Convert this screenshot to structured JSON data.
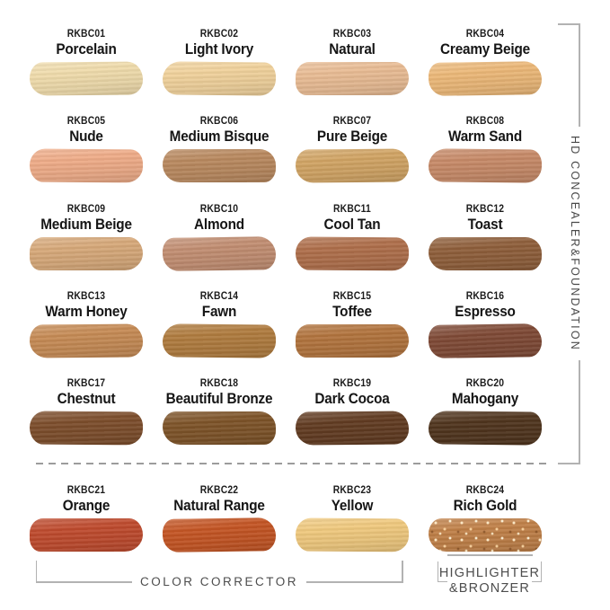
{
  "sections": {
    "right_label": "HD CONCEALER&FOUNDATION",
    "color_corrector_label": "COLOR CORRECTOR",
    "highlighter_bronzer_line1": "HIGHLIGHTER",
    "highlighter_bronzer_line2": "&BRONZER"
  },
  "groups": [
    {
      "label": "HD CONCEALER&FOUNDATION",
      "shade_codes": "RKBC01-RKBC20"
    },
    {
      "label": "COLOR CORRECTOR",
      "shade_codes": "RKBC21-RKBC23"
    },
    {
      "label": "HIGHLIGHTER &BRONZER",
      "shade_codes": "RKBC24"
    }
  ],
  "colors": {
    "text": "#1c1c1c",
    "section_text": "#4d4d4d",
    "bracket_line": "#b2b2b2",
    "divider": "#9c9c9c",
    "background": "#ffffff"
  },
  "shades": [
    {
      "code": "RKBC01",
      "name": "Porcelain",
      "color": "#f0dcac"
    },
    {
      "code": "RKBC02",
      "name": "Light Ivory",
      "color": "#f1d29c"
    },
    {
      "code": "RKBC03",
      "name": "Natural",
      "color": "#e9bc94"
    },
    {
      "code": "RKBC04",
      "name": "Creamy Beige",
      "color": "#ecb878"
    },
    {
      "code": "RKBC05",
      "name": "Nude",
      "color": "#efac88"
    },
    {
      "code": "RKBC06",
      "name": "Medium Bisque",
      "color": "#b9895f"
    },
    {
      "code": "RKBC07",
      "name": "Pure Beige",
      "color": "#d1a464"
    },
    {
      "code": "RKBC08",
      "name": "Warm Sand",
      "color": "#c78a68"
    },
    {
      "code": "RKBC09",
      "name": "Medium Beige",
      "color": "#d7a97a"
    },
    {
      "code": "RKBC10",
      "name": "Almond",
      "color": "#c28e72"
    },
    {
      "code": "RKBC11",
      "name": "Cool Tan",
      "color": "#af6f4b"
    },
    {
      "code": "RKBC12",
      "name": "Toast",
      "color": "#8f5f3b"
    },
    {
      "code": "RKBC13",
      "name": "Warm Honey",
      "color": "#c68b55"
    },
    {
      "code": "RKBC14",
      "name": "Fawn",
      "color": "#b07c3f"
    },
    {
      "code": "RKBC15",
      "name": "Toffee",
      "color": "#b2743e"
    },
    {
      "code": "RKBC16",
      "name": "Espresso",
      "color": "#7f4a36"
    },
    {
      "code": "RKBC17",
      "name": "Chestnut",
      "color": "#7d4e2c"
    },
    {
      "code": "RKBC18",
      "name": "Beautiful Bronze",
      "color": "#7e5429"
    },
    {
      "code": "RKBC19",
      "name": "Dark Cocoa",
      "color": "#623c22"
    },
    {
      "code": "RKBC20",
      "name": "Mahogany",
      "color": "#50351e"
    },
    {
      "code": "RKBC21",
      "name": "Orange",
      "color": "#bf4b2e"
    },
    {
      "code": "RKBC22",
      "name": "Natural Range",
      "color": "#c45524"
    },
    {
      "code": "RKBC23",
      "name": "Yellow",
      "color": "#f0c97e"
    },
    {
      "code": "RKBC24",
      "name": "Rich Gold",
      "color": "#c08048",
      "finish": "shimmer"
    }
  ]
}
